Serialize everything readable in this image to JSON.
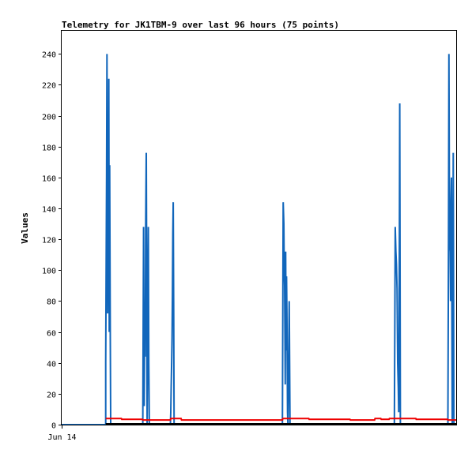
{
  "chart_data": {
    "type": "line",
    "title": "Telemetry for JK1TBM-9 over last 96 hours (75 points)",
    "xlabel": "",
    "ylabel": "Values",
    "ylim": [
      0,
      255
    ],
    "yticks": [
      0,
      20,
      40,
      60,
      80,
      100,
      120,
      140,
      160,
      180,
      200,
      220,
      240
    ],
    "xlim": [
      0,
      96
    ],
    "xtick_labels": [
      {
        "x": 0,
        "label": "Jun 14"
      }
    ],
    "grid": false,
    "legend": "none",
    "colors": {
      "blue": "#1166bb",
      "red": "#ee0000",
      "black": "#000000"
    },
    "series": [
      {
        "color": "#1166bb",
        "points": [
          [
            0,
            0
          ],
          [
            10.7,
            0
          ],
          [
            10.7,
            40
          ],
          [
            10.9,
            160
          ],
          [
            11.0,
            240
          ],
          [
            11.15,
            72
          ],
          [
            11.25,
            183
          ],
          [
            11.35,
            110
          ],
          [
            11.45,
            224
          ],
          [
            11.55,
            60
          ],
          [
            11.65,
            168
          ],
          [
            11.8,
            56
          ],
          [
            11.9,
            0
          ],
          [
            19.7,
            0
          ],
          [
            19.8,
            64
          ],
          [
            19.9,
            128
          ],
          [
            20.05,
            12
          ],
          [
            20.15,
            64
          ],
          [
            20.3,
            44
          ],
          [
            20.4,
            130
          ],
          [
            20.55,
            176
          ],
          [
            20.65,
            88
          ],
          [
            20.75,
            0
          ],
          [
            20.9,
            64
          ],
          [
            21.05,
            128
          ],
          [
            21.15,
            40
          ],
          [
            21.3,
            0
          ],
          [
            26.4,
            0
          ],
          [
            26.5,
            8
          ],
          [
            26.6,
            24
          ],
          [
            26.7,
            40
          ],
          [
            26.8,
            56
          ],
          [
            26.9,
            84
          ],
          [
            27.0,
            124
          ],
          [
            27.1,
            144
          ],
          [
            27.2,
            72
          ],
          [
            27.3,
            0
          ],
          [
            53.6,
            0
          ],
          [
            53.7,
            72
          ],
          [
            53.8,
            144
          ],
          [
            53.95,
            130
          ],
          [
            54.05,
            100
          ],
          [
            54.15,
            90
          ],
          [
            54.3,
            26
          ],
          [
            54.4,
            112
          ],
          [
            54.5,
            48
          ],
          [
            54.6,
            96
          ],
          [
            54.7,
            72
          ],
          [
            54.85,
            8
          ],
          [
            54.95,
            0
          ],
          [
            55.1,
            30
          ],
          [
            55.25,
            80
          ],
          [
            55.35,
            40
          ],
          [
            55.45,
            0
          ],
          [
            80.8,
            0
          ],
          [
            80.9,
            64
          ],
          [
            81.0,
            128
          ],
          [
            81.15,
            112
          ],
          [
            81.3,
            104
          ],
          [
            81.45,
            88
          ],
          [
            81.6,
            40
          ],
          [
            81.75,
            24
          ],
          [
            81.85,
            8
          ],
          [
            82.0,
            104
          ],
          [
            82.1,
            208
          ],
          [
            82.25,
            0
          ],
          [
            93.8,
            0
          ],
          [
            93.95,
            120
          ],
          [
            94.05,
            240
          ],
          [
            94.2,
            120
          ],
          [
            94.35,
            112
          ],
          [
            94.45,
            80
          ],
          [
            94.55,
            144
          ],
          [
            94.65,
            160
          ],
          [
            94.75,
            80
          ],
          [
            94.85,
            0
          ],
          [
            95.0,
            88
          ],
          [
            95.1,
            176
          ],
          [
            95.25,
            0
          ],
          [
            96,
            0
          ]
        ]
      },
      {
        "color": "#ee0000",
        "points": [
          [
            10.7,
            4
          ],
          [
            14.5,
            4
          ],
          [
            14.6,
            3.5
          ],
          [
            19.6,
            3.5
          ],
          [
            19.7,
            3
          ],
          [
            26.4,
            3
          ],
          [
            26.5,
            4
          ],
          [
            29.0,
            4
          ],
          [
            29.1,
            3
          ],
          [
            53.6,
            3
          ],
          [
            53.7,
            4
          ],
          [
            60.0,
            4
          ],
          [
            60.1,
            3.5
          ],
          [
            70.0,
            3.5
          ],
          [
            70.1,
            3
          ],
          [
            76.0,
            3
          ],
          [
            76.1,
            4
          ],
          [
            77.5,
            4
          ],
          [
            77.6,
            3.5
          ],
          [
            79.5,
            3.5
          ],
          [
            79.6,
            4
          ],
          [
            86.0,
            4
          ],
          [
            86.1,
            3.5
          ],
          [
            93.7,
            3.5
          ],
          [
            93.8,
            3
          ],
          [
            96.0,
            3
          ]
        ]
      },
      {
        "color": "#000000",
        "points": [
          [
            10.7,
            0.5
          ],
          [
            96.0,
            0.5
          ]
        ]
      }
    ]
  }
}
